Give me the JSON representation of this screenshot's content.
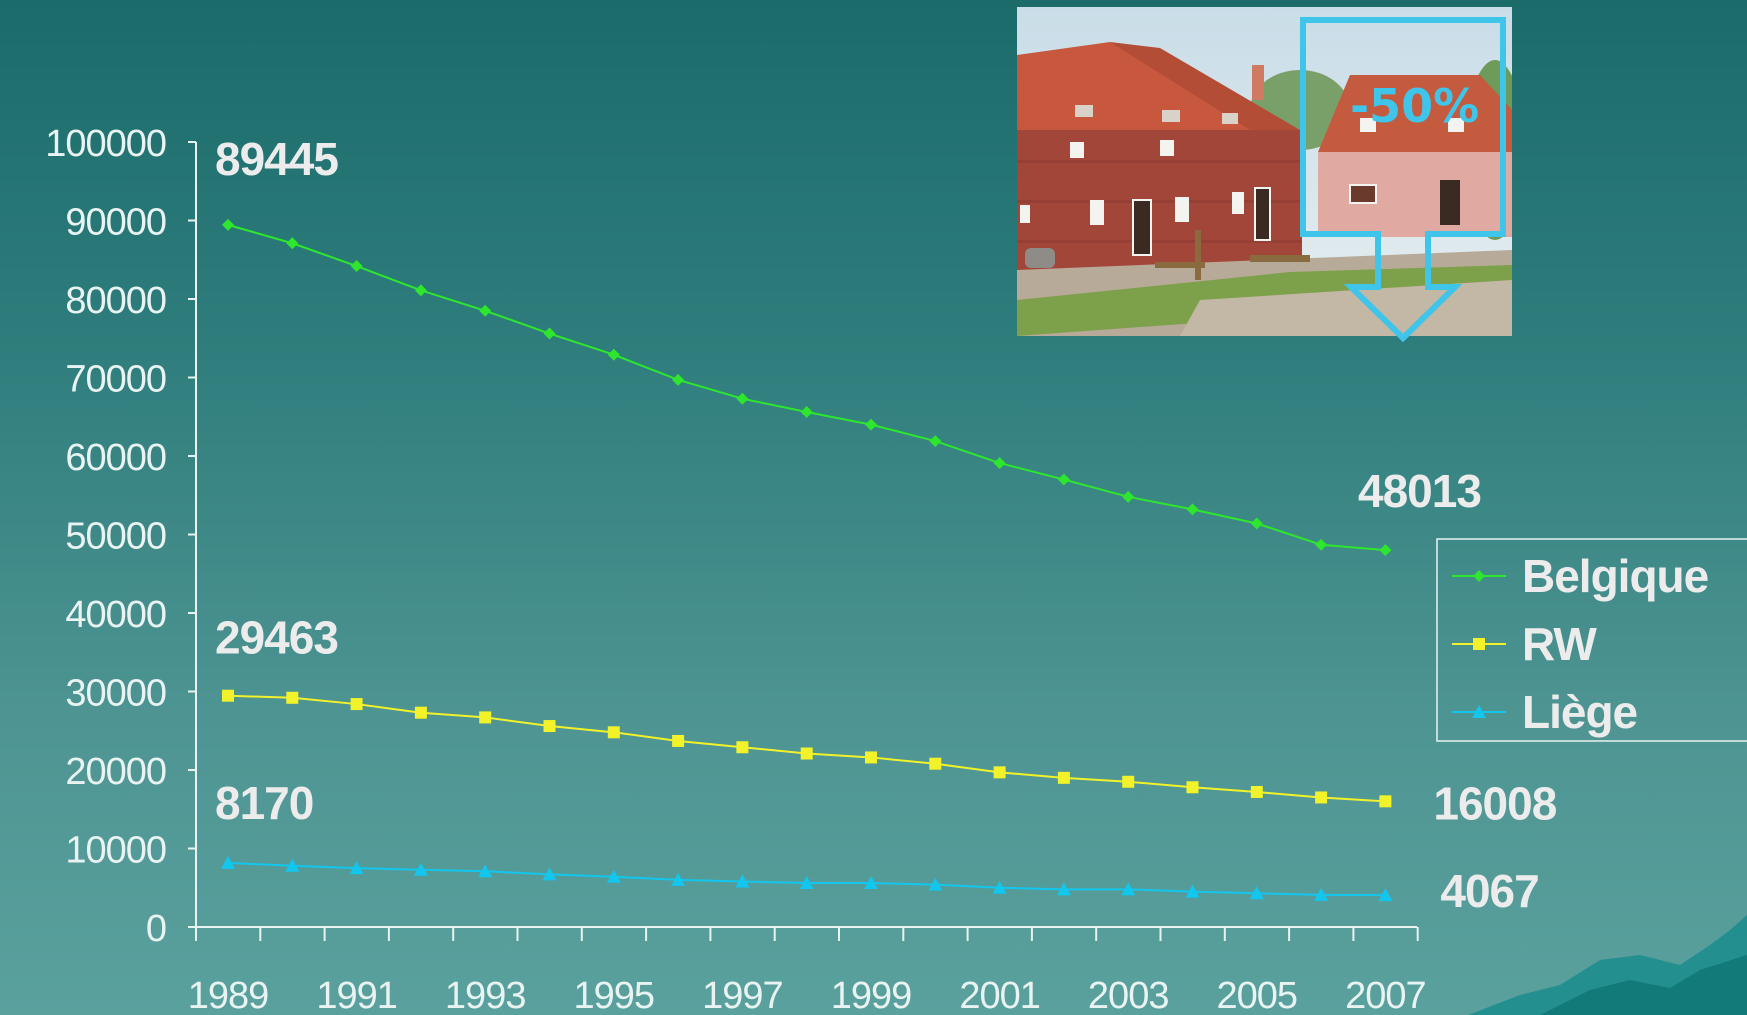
{
  "colors": {
    "belgique": "#2ee62e",
    "rw": "#f2f22a",
    "liege": "#13c6ee",
    "axis": "#e8f3f2",
    "label": "#ececec",
    "badge": "#3fc4ea"
  },
  "photo": {
    "icon": "farmhouse-photo",
    "badge_text": "-50%"
  },
  "chart_data": {
    "type": "line",
    "title": "",
    "xlabel": "",
    "ylabel": "",
    "x": [
      1989,
      1990,
      1991,
      1992,
      1993,
      1994,
      1995,
      1996,
      1997,
      1998,
      1999,
      2000,
      2001,
      2002,
      2003,
      2004,
      2005,
      2006,
      2007
    ],
    "x_tick_labels": [
      "1989",
      "1991",
      "1993",
      "1995",
      "1997",
      "1999",
      "2001",
      "2003",
      "2005",
      "2007"
    ],
    "y_tick_labels": [
      "0",
      "10000",
      "20000",
      "30000",
      "40000",
      "50000",
      "60000",
      "70000",
      "80000",
      "90000",
      "100000"
    ],
    "ylim": [
      0,
      100000
    ],
    "grid": false,
    "legend_position": "right",
    "series": [
      {
        "name": "Belgique",
        "marker": "diamond",
        "values": [
          89445,
          87100,
          84200,
          81100,
          78500,
          75600,
          72900,
          69700,
          67300,
          65600,
          64000,
          61900,
          59100,
          57000,
          54800,
          53200,
          51400,
          48700,
          48013
        ]
      },
      {
        "name": "RW",
        "marker": "square",
        "values": [
          29463,
          29200,
          28400,
          27300,
          26700,
          25600,
          24800,
          23700,
          22900,
          22100,
          21600,
          20800,
          19700,
          19000,
          18500,
          17800,
          17200,
          16500,
          16008
        ]
      },
      {
        "name": "Liège",
        "marker": "triangle",
        "values": [
          8170,
          7800,
          7500,
          7300,
          7100,
          6700,
          6400,
          6000,
          5800,
          5600,
          5600,
          5400,
          5000,
          4800,
          4800,
          4500,
          4300,
          4100,
          4067
        ]
      }
    ],
    "annotations": [
      {
        "text": "89445",
        "series": 0,
        "end": "start"
      },
      {
        "text": "48013",
        "series": 0,
        "end": "end"
      },
      {
        "text": "29463",
        "series": 1,
        "end": "start"
      },
      {
        "text": "16008",
        "series": 1,
        "end": "end"
      },
      {
        "text": "8170",
        "series": 2,
        "end": "start"
      },
      {
        "text": "4067",
        "series": 2,
        "end": "end"
      }
    ]
  }
}
